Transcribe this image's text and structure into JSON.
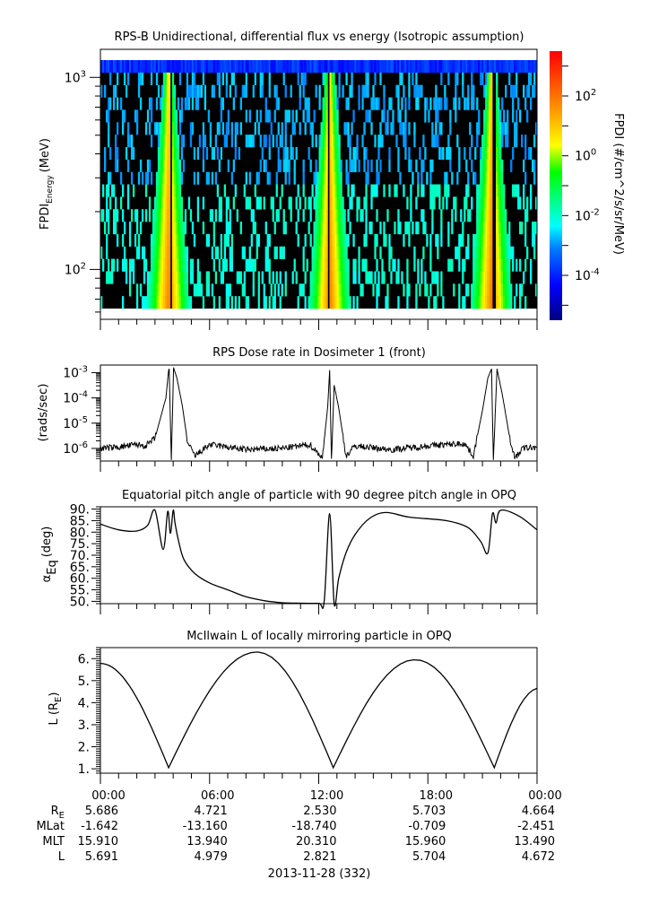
{
  "chart_data": [
    {
      "type": "heatmap",
      "title": "RPS-B  Unidirectional, differential flux vs energy (Isotropic assumption)",
      "ylabel_main": "FPDI",
      "ylabel_sub": "Energy",
      "ylabel_unit": "(MeV)",
      "yscale": "log",
      "ylim": [
        55,
        1400
      ],
      "yticks": [
        {
          "value": 100,
          "base": "10",
          "exp": "2"
        },
        {
          "value": 1000,
          "base": "10",
          "exp": "3"
        }
      ],
      "xlim_hours": [
        0,
        24
      ],
      "energy_rows": 20,
      "colorbar": {
        "label": "FPDI (#/cm^2/s/sr/MeV)",
        "scale": "log",
        "range_log10": [
          -5.5,
          3.5
        ],
        "ticks": [
          {
            "log10": -4,
            "base": "10",
            "exp": "-4"
          },
          {
            "log10": -2,
            "base": "10",
            "exp": "-2"
          },
          {
            "log10": 0,
            "base": "10",
            "exp": "0"
          },
          {
            "log10": 2,
            "base": "10",
            "exp": "2"
          }
        ]
      },
      "belt_passes_hours": [
        3.75,
        12.6,
        21.5
      ],
      "gap_hours": [
        3.9,
        12.55,
        21.65
      ]
    },
    {
      "type": "line",
      "title": "RPS  Dose rate in Dosimeter 1 (front)",
      "ylabel": "(rads/sec)",
      "yscale": "log",
      "ylim_log10": [
        -6.5,
        -2.7
      ],
      "yticks": [
        {
          "log10": -6,
          "base": "10",
          "exp": "-6"
        },
        {
          "log10": -5,
          "base": "10",
          "exp": "-5"
        },
        {
          "log10": -4,
          "base": "10",
          "exp": "-4"
        },
        {
          "log10": -3,
          "base": "10",
          "exp": "-3"
        }
      ],
      "x_hours": [
        0,
        1,
        2,
        2.5,
        3,
        3.3,
        3.6,
        3.75,
        3.78,
        3.9,
        4.02,
        4.2,
        4.5,
        4.8,
        5.2,
        6,
        8,
        10,
        11.5,
        12,
        12.2,
        12.5,
        12.6,
        12.7,
        12.85,
        13.1,
        13.5,
        14,
        16,
        18,
        20,
        20.5,
        21,
        21.3,
        21.5,
        21.6,
        21.8,
        22.1,
        22.5,
        22.8,
        23.2,
        24
      ],
      "y_log10": [
        -6.0,
        -5.95,
        -5.85,
        -5.9,
        -5.6,
        -4.8,
        -4.0,
        -2.9,
        -2.85,
        -6.5,
        -2.8,
        -3.2,
        -4.3,
        -5.8,
        -6.3,
        -5.85,
        -6.05,
        -6.0,
        -5.85,
        -6.2,
        -6.4,
        -4.3,
        -2.9,
        -6.5,
        -3.5,
        -4.4,
        -6.3,
        -5.9,
        -6.05,
        -5.9,
        -5.8,
        -6.3,
        -4.5,
        -3.2,
        -2.85,
        -6.5,
        -2.85,
        -3.9,
        -5.6,
        -6.4,
        -6.0,
        -5.95
      ]
    },
    {
      "type": "line",
      "title": "Equatorial pitch angle of particle with 90 degree pitch angle in OPQ",
      "ylabel_main": "α",
      "ylabel_sub": "Eq",
      "ylabel_unit": "(deg)",
      "ylim": [
        49,
        91
      ],
      "yticks": [
        "50.",
        "55.",
        "60.",
        "65.",
        "70.",
        "75.",
        "80.",
        "85.",
        "90."
      ],
      "x_hours": [
        0,
        1,
        2,
        2.6,
        3.0,
        3.45,
        3.7,
        3.85,
        4.0,
        4.1,
        4.3,
        4.6,
        5.2,
        6,
        7,
        8,
        9,
        10,
        11.0,
        12.0,
        12.3,
        12.6,
        12.85,
        13.1,
        13.5,
        14,
        14.8,
        15.7,
        17,
        19,
        20.2,
        20.9,
        21.3,
        21.55,
        21.75,
        22.0,
        23,
        24
      ],
      "y": [
        83.5,
        81,
        80.5,
        83,
        89.5,
        72.5,
        89,
        79.5,
        89.5,
        84,
        76,
        68,
        62,
        58,
        55,
        52,
        50.3,
        49.4,
        49.2,
        49.2,
        50,
        88,
        49,
        60,
        71,
        79,
        86,
        88.5,
        86.5,
        85,
        82,
        76,
        71,
        88,
        84,
        89.5,
        87,
        81
      ]
    },
    {
      "type": "line",
      "title": "McIlwain L of locally mirroring particle in OPQ",
      "ylabel_main": "L (R",
      "ylabel_sub": "E",
      "ylabel_end": ")",
      "ylim": [
        0.8,
        6.5
      ],
      "yticks": [
        "1.",
        "2.",
        "3.",
        "4.",
        "5.",
        "6."
      ],
      "minima_hours": [
        3.75,
        12.8,
        21.65
      ],
      "maxima": [
        {
          "hour": 8.6,
          "L": 6.3
        },
        {
          "hour": 17.3,
          "L": 5.95
        }
      ],
      "start_L": 5.78,
      "end_L": 4.65
    }
  ],
  "x_axis": {
    "tick_labels": [
      "00:00",
      "06:00",
      "12:00",
      "18:00",
      "00:00"
    ],
    "rows": [
      {
        "label_main": "R",
        "label_sub": "E",
        "values": [
          "5.686",
          "4.721",
          "2.530",
          "5.703",
          "4.664"
        ]
      },
      {
        "label_main": "MLat",
        "label_sub": "",
        "values": [
          "-1.642",
          "-13.160",
          "-18.740",
          "-0.709",
          "-2.451"
        ]
      },
      {
        "label_main": "MLT",
        "label_sub": "",
        "values": [
          "15.910",
          "13.940",
          "20.310",
          "15.960",
          "13.490"
        ]
      },
      {
        "label_main": "L",
        "label_sub": "",
        "values": [
          "5.691",
          "4.979",
          "2.821",
          "5.704",
          "4.672"
        ]
      }
    ],
    "date_label": "2013-11-28 (332)"
  }
}
